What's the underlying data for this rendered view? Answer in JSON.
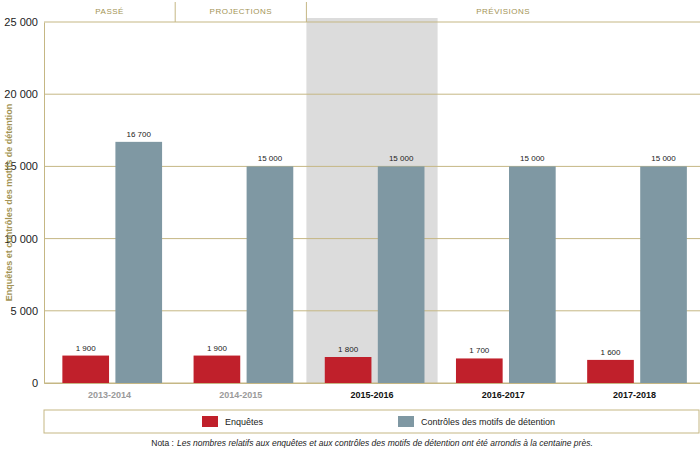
{
  "chart_data": {
    "type": "bar",
    "y_label": "Enquêtes et contrôles des motifs de détention",
    "categories": [
      "2013-2014",
      "2014-2015",
      "2015-2016",
      "2016-2017",
      "2017-2018"
    ],
    "periods": [
      {
        "label": "PASSÉ",
        "categories": [
          "2013-2014"
        ]
      },
      {
        "label": "PROJECTIONS",
        "categories": [
          "2014-2015"
        ]
      },
      {
        "label": "PRÉVISIONS",
        "categories": [
          "2015-2016",
          "2016-2017",
          "2017-2018"
        ]
      }
    ],
    "series": [
      {
        "name": "Enquêtes",
        "color": "#c0202b",
        "values": [
          1900,
          1900,
          1800,
          1700,
          1600
        ],
        "value_labels": [
          "1 900",
          "1 900",
          "1 800",
          "1 700",
          "1 600"
        ]
      },
      {
        "name": "Contrôles des motifs de détention",
        "color": "#7f98a3",
        "values": [
          16700,
          15000,
          15000,
          15000,
          15000
        ],
        "value_labels": [
          "16 700",
          "15 000",
          "15 000",
          "15 000",
          "15 000"
        ]
      }
    ],
    "ylim": [
      0,
      25000
    ],
    "yticks": [
      0,
      {
        "value": 5000,
        "label": "5 000"
      },
      {
        "value": 10000,
        "label": "10 000"
      },
      {
        "value": 15000,
        "label": "15 000"
      },
      {
        "value": 20000,
        "label": "20 000"
      },
      {
        "value": 25000,
        "label": "25 000"
      }
    ],
    "grid": true,
    "legend": "bottom",
    "data_labels": true,
    "annotations": [
      "Nota :",
      "Les nombres relatifs aux enquêtes et aux contrôles des motifs de détention ont été arrondis à la centaine près."
    ]
  }
}
